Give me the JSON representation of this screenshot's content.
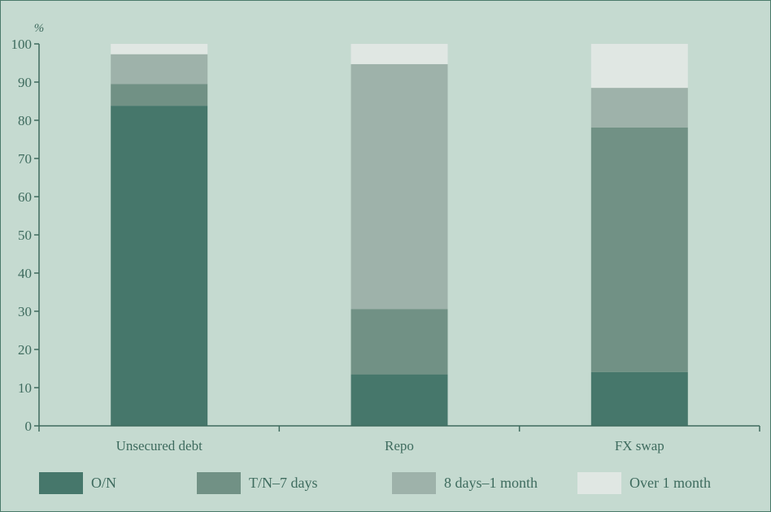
{
  "chart_data": {
    "type": "bar",
    "stacked": true,
    "unit": "%",
    "ylim": [
      0,
      100
    ],
    "yticks": [
      0,
      10,
      20,
      30,
      40,
      50,
      60,
      70,
      80,
      90,
      100
    ],
    "categories": [
      "Unsecured debt",
      "Repo",
      "FX swap"
    ],
    "series": [
      {
        "name": "O/N",
        "color": "#46776b",
        "values": [
          83.8,
          13.5,
          14.1
        ]
      },
      {
        "name": "T/N–7 days",
        "color": "#719185",
        "values": [
          5.7,
          17.1,
          64.0
        ]
      },
      {
        "name": "8 days–1 month",
        "color": "#9eb2aa",
        "values": [
          7.8,
          64.1,
          10.4
        ]
      },
      {
        "name": "Over 1 month",
        "color": "#e0e7e3",
        "values": [
          2.7,
          5.3,
          11.5
        ]
      }
    ],
    "legend_position": "bottom",
    "grid": false
  }
}
